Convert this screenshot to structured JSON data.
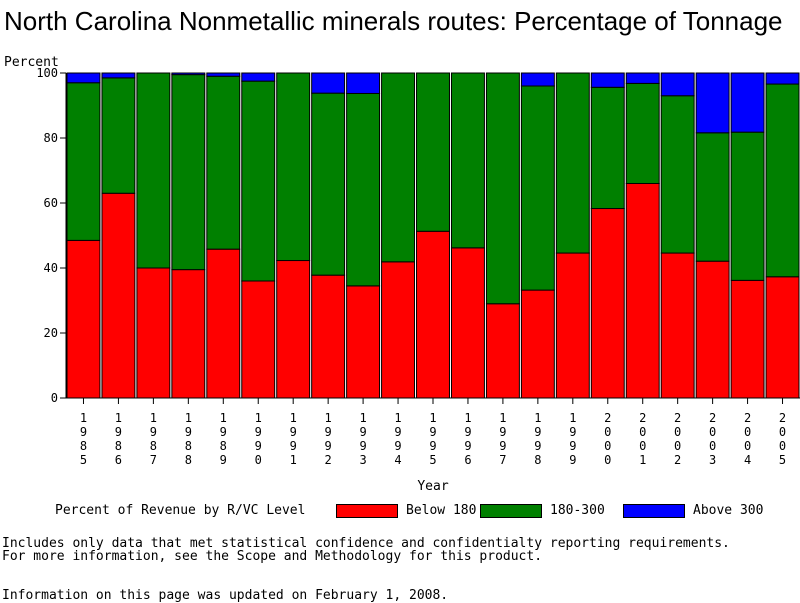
{
  "title": "North Carolina Nonmetallic minerals routes: Percentage of Tonnage",
  "chart_data": {
    "type": "bar",
    "stacked": true,
    "ylabel": "Percent",
    "xlabel": "Year",
    "ylim": [
      0,
      100
    ],
    "yticks": [
      0,
      20,
      40,
      60,
      80,
      100
    ],
    "categories": [
      "1985",
      "1986",
      "1987",
      "1988",
      "1989",
      "1990",
      "1991",
      "1992",
      "1993",
      "1994",
      "1995",
      "1996",
      "1997",
      "1998",
      "1999",
      "2000",
      "2001",
      "2002",
      "2003",
      "2004",
      "2005"
    ],
    "series": [
      {
        "name": "Below 180",
        "color": "#ff0000",
        "values": [
          48.5,
          63,
          40,
          39.5,
          45.8,
          36,
          42.3,
          37.8,
          34.5,
          41.9,
          51.3,
          46.2,
          29,
          33.2,
          44.6,
          58.3,
          66,
          44.6,
          42.1,
          36.2,
          37.3
        ]
      },
      {
        "name": "180-300",
        "color": "#008000",
        "values": [
          48.5,
          35.5,
          60,
          60,
          53.2,
          61.5,
          57.7,
          56,
          59.2,
          58.1,
          48.7,
          53.8,
          71,
          62.8,
          55.4,
          37.3,
          30.8,
          48.4,
          39.5,
          45.6,
          59.3
        ]
      },
      {
        "name": "Above 300",
        "color": "#0000ff",
        "values": [
          3,
          1.5,
          0,
          0.5,
          1,
          2.5,
          0,
          6.2,
          6.3,
          0,
          0,
          0,
          0,
          4,
          0,
          4.4,
          3.2,
          7,
          18.4,
          18.2,
          3.4
        ]
      }
    ]
  },
  "legend": {
    "title": "Percent of Revenue by R/VC Level",
    "items": [
      {
        "label": "Below 180",
        "color": "#ff0000"
      },
      {
        "label": "180-300",
        "color": "#008000"
      },
      {
        "label": "Above 300",
        "color": "#0000ff"
      }
    ]
  },
  "notes": {
    "line1": "Includes only data that met statistical confidence and confidentialty reporting requirements.",
    "line2": "For more information, see the Scope and Methodology for this product.",
    "updated": "Information on this page was updated on February 1, 2008."
  }
}
